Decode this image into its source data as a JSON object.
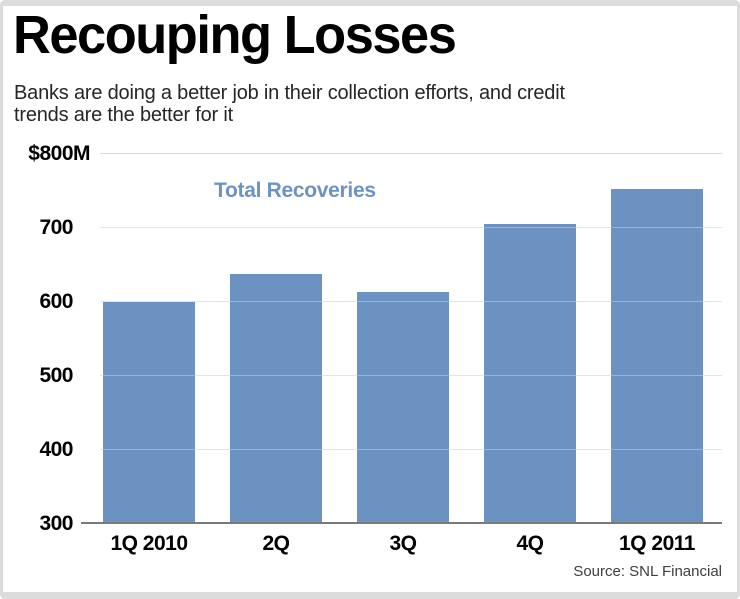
{
  "header": {
    "title": "Recouping Losses",
    "subtitle_line1": "Banks are doing a better job in their collection efforts, and credit",
    "subtitle_line2": "trends are the better for it"
  },
  "chart_data": {
    "type": "bar",
    "title": "Total Recoveries",
    "unit": "$M",
    "categories": [
      "1Q 2010",
      "2Q",
      "3Q",
      "4Q",
      "1Q 2011"
    ],
    "values": [
      598,
      637,
      612,
      704,
      752
    ],
    "ylim": [
      300,
      800
    ],
    "yticks": [
      {
        "value": 800,
        "label": "$800M"
      },
      {
        "value": 700,
        "label": "700"
      },
      {
        "value": 600,
        "label": "600"
      },
      {
        "value": 500,
        "label": "500"
      },
      {
        "value": 400,
        "label": "400"
      },
      {
        "value": 300,
        "label": "300"
      }
    ],
    "grid": true,
    "legend_position": "top-center",
    "bar_color": "#6b92c0",
    "legend_color": "#6b93c4",
    "gridline_color": "#d9d9d9",
    "axis_color": "#7a7a7a"
  },
  "footer": {
    "source": "Source: SNL Financial"
  }
}
